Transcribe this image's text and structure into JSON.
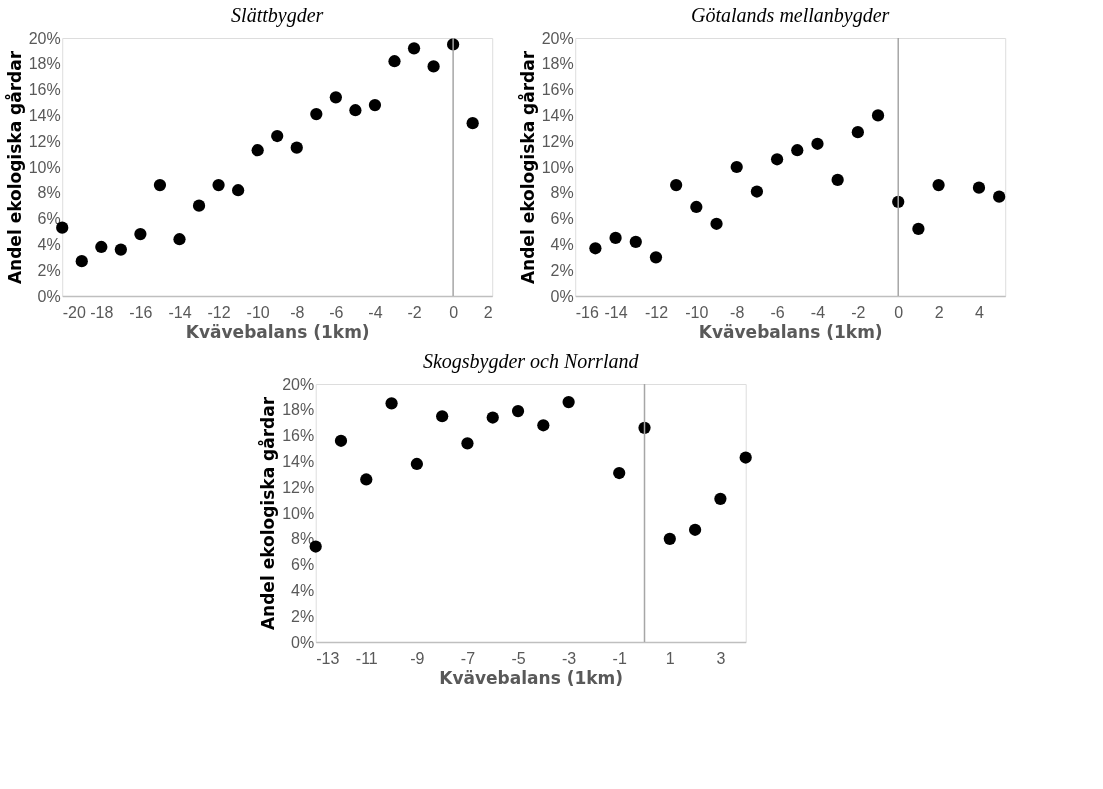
{
  "chart_data": [
    {
      "type": "scatter",
      "title": "Slättbygder",
      "xlabel": "Kvävebalans (1km)",
      "ylabel": "Andel ekologiska gårdar",
      "marker": "circle",
      "grid": false,
      "x": [
        -20,
        -19,
        -18,
        -17,
        -16,
        -15,
        -14,
        -13,
        -12,
        -11,
        -10,
        -9,
        -8,
        -7,
        -6,
        -5,
        -4,
        -3,
        -2,
        -1,
        0,
        1
      ],
      "series": [
        {
          "color": "#000000",
          "values": [
            5.3,
            2.7,
            3.8,
            3.6,
            4.8,
            8.6,
            4.4,
            7.0,
            8.6,
            8.2,
            11.3,
            12.4,
            11.5,
            14.1,
            15.4,
            14.4,
            14.8,
            18.2,
            19.2,
            17.8,
            19.5,
            13.4
          ]
        }
      ],
      "xlim": [
        -20,
        2
      ],
      "xticks": [
        -20,
        -18,
        -16,
        -14,
        -12,
        -10,
        -8,
        -6,
        -4,
        -2,
        0,
        2
      ],
      "ylim": [
        0,
        20
      ],
      "yticks": [
        {
          "value": 0,
          "label": "0%"
        },
        {
          "value": 2,
          "label": "2%"
        },
        {
          "value": 4,
          "label": "4%"
        },
        {
          "value": 6,
          "label": "6%"
        },
        {
          "value": 8,
          "label": "8%"
        },
        {
          "value": 10,
          "label": "10%"
        },
        {
          "value": 12,
          "label": "12%"
        },
        {
          "value": 14,
          "label": "14%"
        },
        {
          "value": 16,
          "label": "16%"
        },
        {
          "value": 18,
          "label": "18%"
        },
        {
          "value": 20,
          "label": "20%"
        }
      ],
      "ref_lines": [
        {
          "axis": "x",
          "value": 0,
          "color": "#a6a6a6"
        }
      ]
    },
    {
      "type": "scatter",
      "title": "Götalands mellanbygder",
      "xlabel": "Kvävebalans (1km)",
      "ylabel": "Andel ekologiska gårdar",
      "marker": "circle",
      "grid": false,
      "x": [
        -15,
        -14,
        -13,
        -12,
        -11,
        -10,
        -9,
        -8,
        -7,
        -6,
        -5,
        -4,
        -3,
        -2,
        -1,
        0,
        1,
        2,
        4,
        5
      ],
      "series": [
        {
          "color": "#000000",
          "values": [
            3.7,
            4.5,
            4.2,
            3.0,
            8.6,
            6.9,
            5.6,
            10.0,
            8.1,
            10.6,
            11.3,
            11.8,
            9.0,
            12.7,
            14.0,
            7.3,
            5.2,
            8.6,
            8.4,
            7.7
          ]
        }
      ],
      "xlim": [
        -16,
        5.3
      ],
      "xticks": [
        -16,
        -14,
        -12,
        -10,
        -8,
        -6,
        -4,
        -2,
        0,
        2,
        4
      ],
      "ylim": [
        0,
        20
      ],
      "yticks": [
        {
          "value": 0,
          "label": "0%"
        },
        {
          "value": 2,
          "label": "2%"
        },
        {
          "value": 4,
          "label": "4%"
        },
        {
          "value": 6,
          "label": "6%"
        },
        {
          "value": 8,
          "label": "8%"
        },
        {
          "value": 10,
          "label": "10%"
        },
        {
          "value": 12,
          "label": "12%"
        },
        {
          "value": 14,
          "label": "14%"
        },
        {
          "value": 16,
          "label": "16%"
        },
        {
          "value": 18,
          "label": "18%"
        },
        {
          "value": 20,
          "label": "20%"
        }
      ],
      "ref_lines": [
        {
          "axis": "x",
          "value": 0,
          "color": "#a6a6a6"
        }
      ]
    },
    {
      "type": "scatter",
      "title": "Skogsbygder och Norrland",
      "xlabel": "Kvävebalans (1km)",
      "ylabel": "Andel ekologiska gårdar",
      "marker": "circle",
      "grid": false,
      "x": [
        -13,
        -12,
        -11,
        -10,
        -9,
        -8,
        -7,
        -6,
        -5,
        -4,
        -3,
        -1,
        0,
        1,
        2,
        3,
        4
      ],
      "series": [
        {
          "color": "#000000",
          "values": [
            7.4,
            15.6,
            12.6,
            18.5,
            13.8,
            17.5,
            15.4,
            17.4,
            17.9,
            16.8,
            18.6,
            13.1,
            16.6,
            8.0,
            8.7,
            11.1,
            14.3
          ]
        }
      ],
      "xlim": [
        -13,
        4
      ],
      "xticks": [
        -13,
        -11,
        -9,
        -7,
        -5,
        -3,
        -1,
        1,
        3
      ],
      "ylim": [
        0,
        20
      ],
      "yticks": [
        {
          "value": 0,
          "label": "0%"
        },
        {
          "value": 2,
          "label": "2%"
        },
        {
          "value": 4,
          "label": "4%"
        },
        {
          "value": 6,
          "label": "6%"
        },
        {
          "value": 8,
          "label": "8%"
        },
        {
          "value": 10,
          "label": "10%"
        },
        {
          "value": 12,
          "label": "12%"
        },
        {
          "value": 14,
          "label": "14%"
        },
        {
          "value": 16,
          "label": "16%"
        },
        {
          "value": 18,
          "label": "18%"
        },
        {
          "value": 20,
          "label": "20%"
        }
      ],
      "ref_lines": [
        {
          "axis": "x",
          "value": 0,
          "color": "#a6a6a6"
        }
      ]
    }
  ]
}
